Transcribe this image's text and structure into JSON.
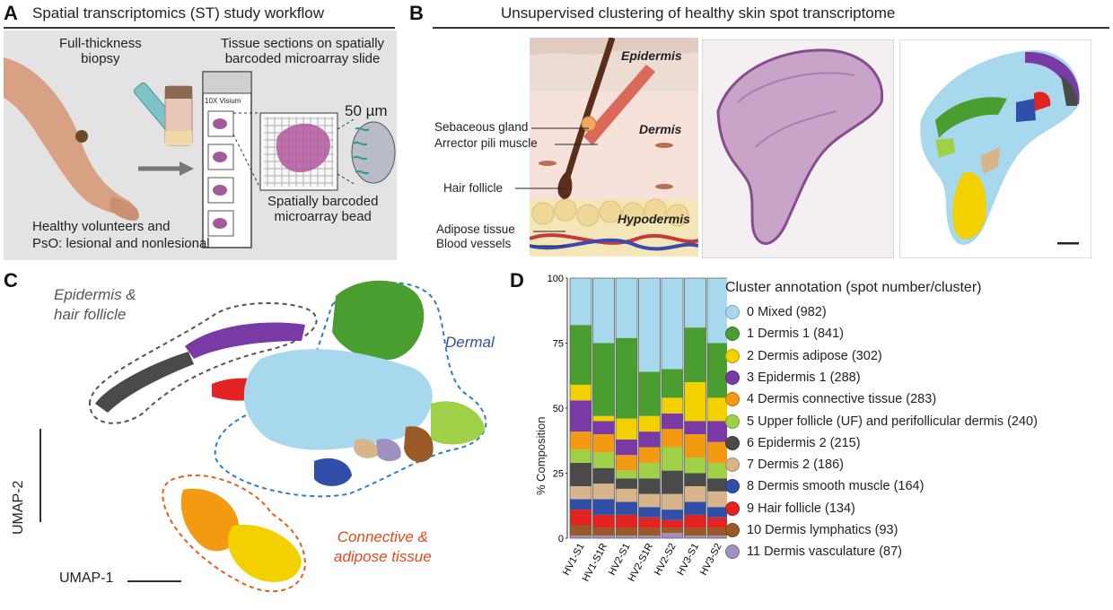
{
  "panels": {
    "a": {
      "letter": "A",
      "title": "Spatial transcriptomics (ST) study workflow",
      "biopsy_label": "Full-thickness\nbiopsy",
      "sections_label": "Tissue sections on spatially\nbarcoded microarray slide",
      "slide_label": "10X Visium",
      "scale_label": "50 µm",
      "bead_label": "Spatially barcoded\nmicroarray bead",
      "cohort_label": "Healthy volunteers and\nPsO: lesional and nonlesional"
    },
    "b": {
      "letter": "B",
      "title": "Unsupervised clustering of healthy skin spot transcriptome",
      "layers": {
        "epidermis": "Epidermis",
        "dermis": "Dermis",
        "hypodermis": "Hypodermis"
      },
      "structures": [
        "Sebaceous gland",
        "Arrector pili muscle",
        "Hair follicle",
        "Adipose tissue",
        "Blood vessels"
      ]
    },
    "c": {
      "letter": "C",
      "region_epidermis": "Epidermis &\nhair follicle",
      "region_dermal": "Dermal",
      "region_connective": "Connective &\nadipose tissue",
      "axis_x": "UMAP-1",
      "axis_y": "UMAP-2"
    },
    "d": {
      "letter": "D",
      "legend_title": "Cluster annotation (spot number/cluster)"
    }
  },
  "clusters": [
    {
      "id": 0,
      "label": "0 Mixed (982)",
      "color": "#a8d8ee"
    },
    {
      "id": 1,
      "label": "1 Dermis 1 (841)",
      "color": "#4a9e2f"
    },
    {
      "id": 2,
      "label": "2 Dermis adipose  (302)",
      "color": "#f3d000"
    },
    {
      "id": 3,
      "label": "3 Epidermis 1 (288)",
      "color": "#7a3aa6"
    },
    {
      "id": 4,
      "label": "4 Dermis connective tissue (283)",
      "color": "#f39a12"
    },
    {
      "id": 5,
      "label": "5 Upper follicle (UF) and perifollicular dermis (240)",
      "color": "#9fd048"
    },
    {
      "id": 6,
      "label": "6 Epidermis 2 (215)",
      "color": "#4a4a4a"
    },
    {
      "id": 7,
      "label": "7 Dermis 2 (186)",
      "color": "#d8b48a"
    },
    {
      "id": 8,
      "label": "8 Dermis smooth muscle (164)",
      "color": "#2f4fa8"
    },
    {
      "id": 9,
      "label": "9 Hair follicle (134)",
      "color": "#e32222"
    },
    {
      "id": 10,
      "label": "10 Dermis lymphatics  (93)",
      "color": "#9a5a28"
    },
    {
      "id": 11,
      "label": "11 Dermis vasculature  (87)",
      "color": "#a090c0"
    }
  ],
  "chart_data": {
    "type": "bar",
    "stacked": true,
    "ylabel": "% Composition",
    "ylim": [
      0,
      100
    ],
    "yticks": [
      0,
      25,
      50,
      75,
      100
    ],
    "categories": [
      "HV1-S1",
      "HV1-S1R",
      "HV2-S1",
      "HV2-S1R",
      "HV2-S2",
      "HV3-S1",
      "HV3-S2"
    ],
    "series": [
      {
        "name": "11 Dermis vasculature",
        "values": [
          1,
          1,
          1,
          1,
          2,
          1,
          1
        ]
      },
      {
        "name": "10 Dermis lymphatics",
        "values": [
          4,
          3,
          3,
          3,
          2,
          3,
          3
        ]
      },
      {
        "name": "9 Hair follicle",
        "values": [
          6,
          5,
          5,
          4,
          3,
          5,
          4
        ]
      },
      {
        "name": "8 Dermis smooth muscle",
        "values": [
          4,
          6,
          5,
          4,
          4,
          5,
          4
        ]
      },
      {
        "name": "7 Dermis 2",
        "values": [
          5,
          6,
          5,
          5,
          6,
          6,
          6
        ]
      },
      {
        "name": "6 Epidermis 2",
        "values": [
          9,
          6,
          4,
          6,
          9,
          5,
          5
        ]
      },
      {
        "name": "5 Upper follicle (UF) and perifollicular dermis",
        "values": [
          5,
          6,
          3,
          6,
          9,
          6,
          6
        ]
      },
      {
        "name": "4 Dermis connective tissue",
        "values": [
          7,
          7,
          6,
          6,
          7,
          9,
          8
        ]
      },
      {
        "name": "3 Epidermis 1",
        "values": [
          12,
          5,
          6,
          6,
          6,
          5,
          8
        ]
      },
      {
        "name": "2 Dermis adipose",
        "values": [
          6,
          2,
          8,
          6,
          6,
          15,
          9
        ]
      },
      {
        "name": "1 Dermis 1",
        "values": [
          23,
          28,
          31,
          17,
          11,
          21,
          21
        ]
      },
      {
        "name": "0 Mixed",
        "values": [
          18,
          25,
          23,
          36,
          35,
          19,
          25
        ]
      }
    ]
  }
}
